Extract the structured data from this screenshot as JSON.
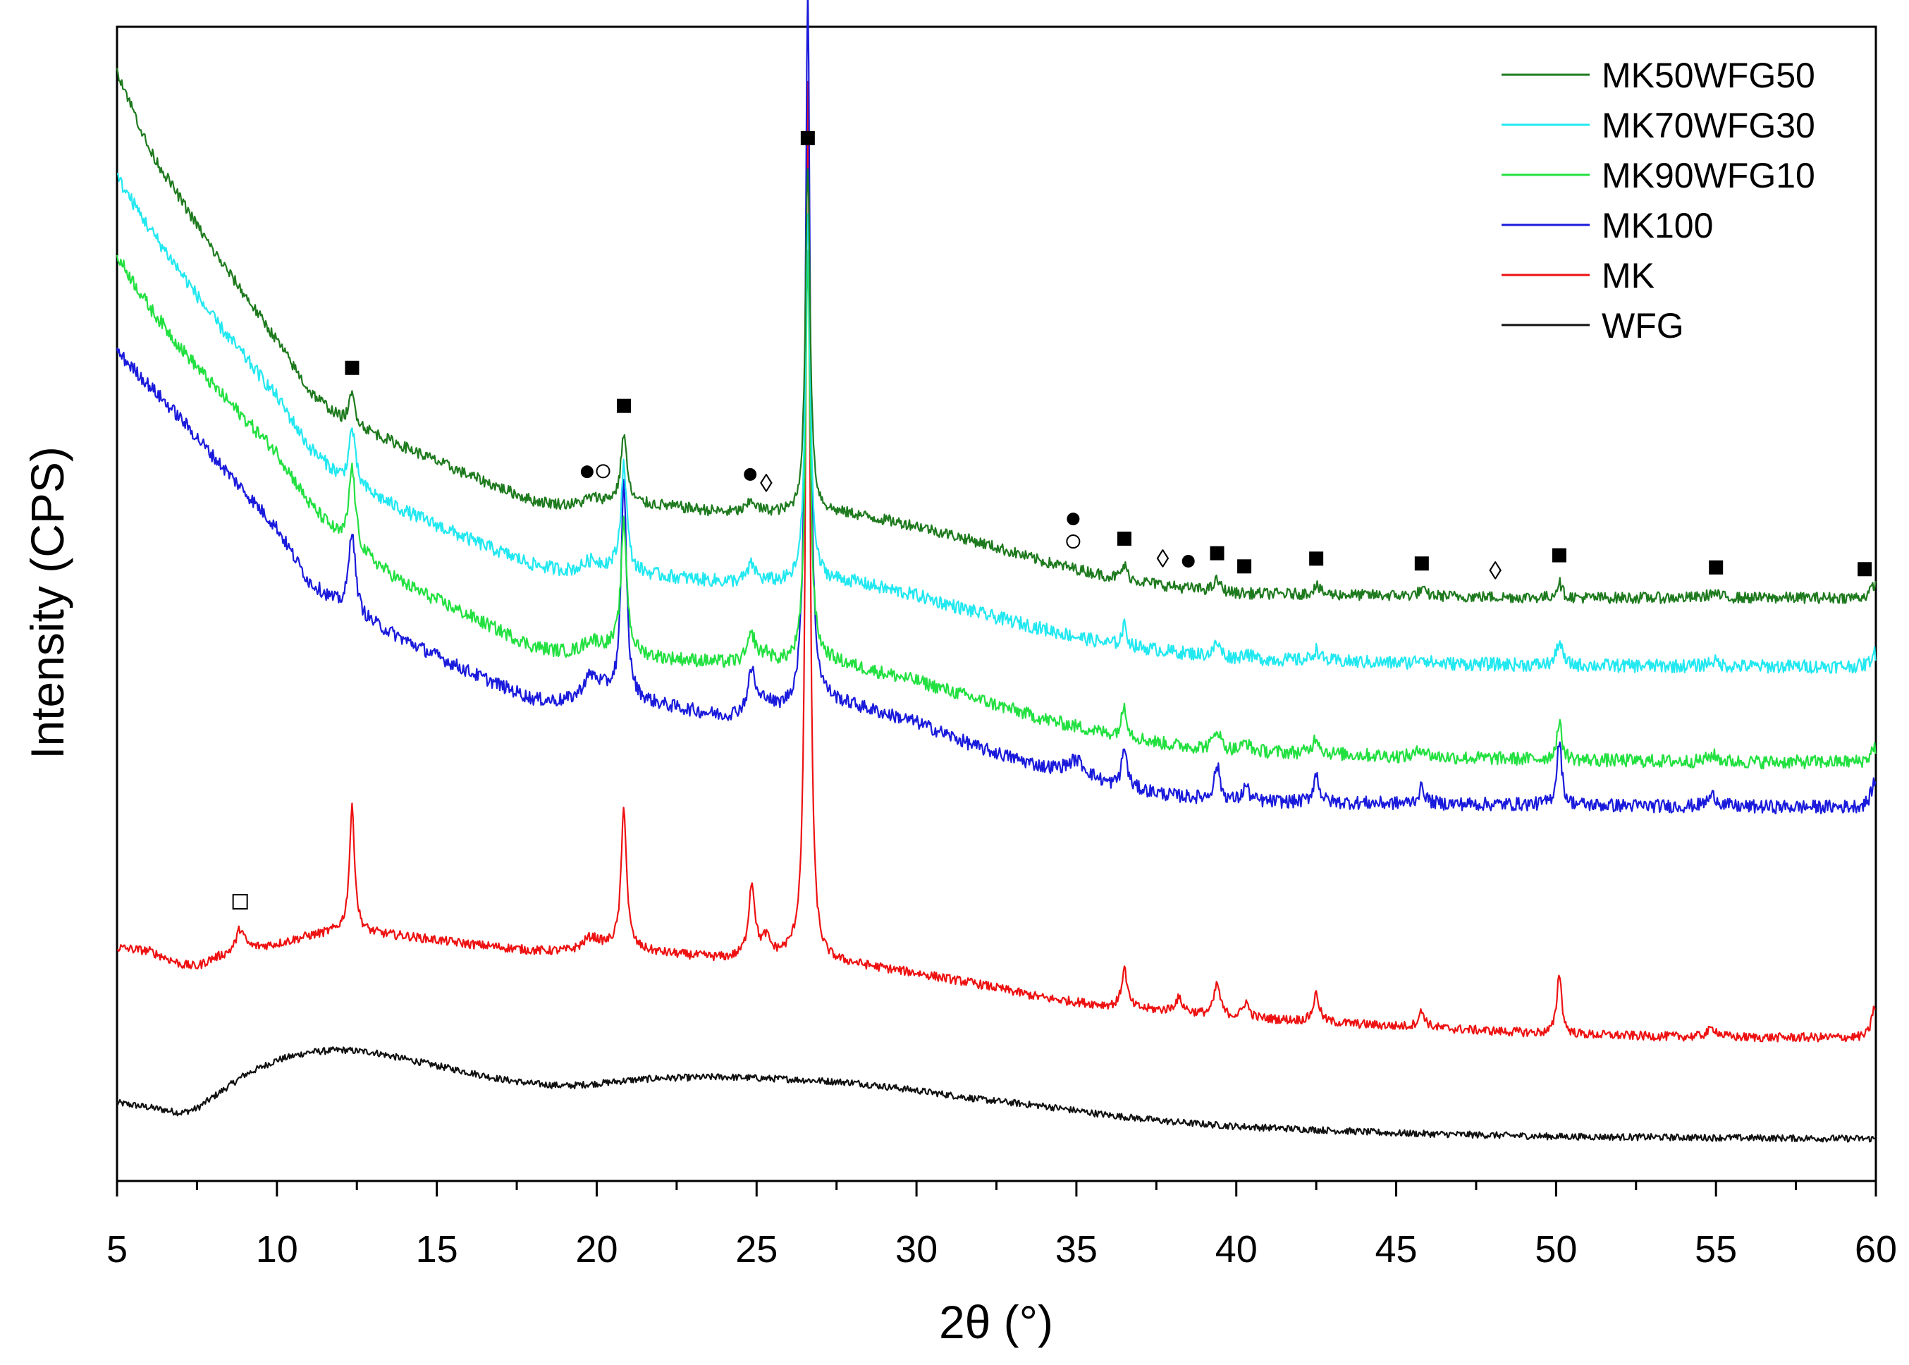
{
  "chart_data": {
    "type": "line",
    "title": "",
    "xlabel": "2θ (°)",
    "ylabel": "Intensity (CPS)",
    "xlim": [
      5,
      60
    ],
    "xticks": [
      5,
      10,
      15,
      20,
      25,
      30,
      35,
      40,
      45,
      50,
      55,
      60
    ],
    "ylim": [
      0,
      1000
    ],
    "yticks_shown": false,
    "legend_position": "top-right",
    "series": [
      {
        "name": "MK50WFG50",
        "color": "#1e7a1e",
        "noise": 5,
        "baseline": [
          [
            5,
            975
          ],
          [
            6,
            905
          ],
          [
            7,
            860
          ],
          [
            8,
            815
          ],
          [
            9,
            775
          ],
          [
            10,
            735
          ],
          [
            11,
            690
          ],
          [
            12,
            665
          ],
          [
            14,
            640
          ],
          [
            16,
            615
          ],
          [
            18,
            592
          ],
          [
            19.5,
            585
          ],
          [
            20.5,
            590
          ],
          [
            22,
            588
          ],
          [
            24,
            582
          ],
          [
            25.5,
            582
          ],
          [
            26.3,
            580
          ],
          [
            27,
            582
          ],
          [
            28,
            580
          ],
          [
            30,
            570
          ],
          [
            32,
            555
          ],
          [
            34,
            538
          ],
          [
            36,
            525
          ],
          [
            38,
            516
          ],
          [
            40,
            510
          ],
          [
            45,
            508
          ],
          [
            50,
            506
          ],
          [
            55,
            506
          ],
          [
            60,
            506
          ]
        ],
        "peaks": [
          [
            12.35,
            26,
            0.12
          ],
          [
            19.8,
            8,
            0.45
          ],
          [
            20.85,
            62,
            0.11
          ],
          [
            24.85,
            10,
            0.15
          ],
          [
            26.6,
            310,
            0.09
          ],
          [
            36.5,
            12,
            0.1
          ],
          [
            39.4,
            10,
            0.12
          ],
          [
            42.5,
            8,
            0.12
          ],
          [
            45.8,
            5,
            0.15
          ],
          [
            50.1,
            14,
            0.1
          ],
          [
            54.9,
            4,
            0.2
          ],
          [
            59.95,
            12,
            0.12
          ]
        ]
      },
      {
        "name": "MK70WFG30",
        "color": "#22e8f0",
        "noise": 6,
        "baseline": [
          [
            5,
            880
          ],
          [
            6,
            835
          ],
          [
            7,
            795
          ],
          [
            8,
            755
          ],
          [
            9,
            720
          ],
          [
            10,
            685
          ],
          [
            11,
            640
          ],
          [
            12,
            612
          ],
          [
            14,
            583
          ],
          [
            16,
            558
          ],
          [
            18,
            535
          ],
          [
            19.5,
            525
          ],
          [
            20.5,
            530
          ],
          [
            22,
            525
          ],
          [
            24,
            520
          ],
          [
            25.5,
            520
          ],
          [
            26.3,
            518
          ],
          [
            27,
            522
          ],
          [
            28,
            520
          ],
          [
            30,
            508
          ],
          [
            32,
            492
          ],
          [
            34,
            478
          ],
          [
            36,
            465
          ],
          [
            38,
            458
          ],
          [
            40,
            452
          ],
          [
            45,
            448
          ],
          [
            50,
            446
          ],
          [
            55,
            445
          ],
          [
            60,
            445
          ]
        ],
        "peaks": [
          [
            12.35,
            50,
            0.12
          ],
          [
            19.8,
            12,
            0.45
          ],
          [
            20.85,
            95,
            0.11
          ],
          [
            24.85,
            15,
            0.15
          ],
          [
            26.6,
            330,
            0.09
          ],
          [
            36.5,
            18,
            0.1
          ],
          [
            39.4,
            12,
            0.12
          ],
          [
            40.3,
            6,
            0.12
          ],
          [
            42.5,
            10,
            0.12
          ],
          [
            45.8,
            6,
            0.15
          ],
          [
            50.1,
            22,
            0.1
          ],
          [
            54.9,
            5,
            0.2
          ],
          [
            59.95,
            12,
            0.12
          ]
        ]
      },
      {
        "name": "MK90WFG10",
        "color": "#22e040",
        "noise": 6,
        "baseline": [
          [
            5,
            810
          ],
          [
            6,
            765
          ],
          [
            7,
            728
          ],
          [
            8,
            695
          ],
          [
            9,
            665
          ],
          [
            10,
            635
          ],
          [
            11,
            590
          ],
          [
            12,
            558
          ],
          [
            14,
            518
          ],
          [
            16,
            490
          ],
          [
            18,
            462
          ],
          [
            19.5,
            452
          ],
          [
            20.5,
            458
          ],
          [
            22,
            452
          ],
          [
            24,
            448
          ],
          [
            25.5,
            448
          ],
          [
            26.3,
            448
          ],
          [
            27,
            452
          ],
          [
            28,
            445
          ],
          [
            30,
            432
          ],
          [
            32,
            415
          ],
          [
            34,
            398
          ],
          [
            36,
            385
          ],
          [
            38,
            375
          ],
          [
            40,
            370
          ],
          [
            45,
            365
          ],
          [
            50,
            362
          ],
          [
            55,
            360
          ],
          [
            60,
            360
          ]
        ],
        "peaks": [
          [
            12.35,
            72,
            0.12
          ],
          [
            19.8,
            14,
            0.45
          ],
          [
            20.85,
            115,
            0.11
          ],
          [
            24.85,
            24,
            0.15
          ],
          [
            25.3,
            8,
            0.15
          ],
          [
            26.6,
            360,
            0.09
          ],
          [
            36.5,
            28,
            0.1
          ],
          [
            39.4,
            18,
            0.12
          ],
          [
            40.3,
            8,
            0.12
          ],
          [
            42.5,
            15,
            0.12
          ],
          [
            45.8,
            8,
            0.15
          ],
          [
            50.1,
            32,
            0.1
          ],
          [
            54.9,
            6,
            0.2
          ],
          [
            59.95,
            14,
            0.12
          ]
        ]
      },
      {
        "name": "MK100",
        "color": "#1a1adc",
        "noise": 6,
        "baseline": [
          [
            5,
            725
          ],
          [
            6,
            695
          ],
          [
            7,
            665
          ],
          [
            8,
            632
          ],
          [
            9,
            600
          ],
          [
            10,
            568
          ],
          [
            11,
            520
          ],
          [
            12,
            498
          ],
          [
            14,
            468
          ],
          [
            16,
            440
          ],
          [
            18,
            415
          ],
          [
            19.5,
            408
          ],
          [
            20.5,
            418
          ],
          [
            22,
            410
          ],
          [
            24,
            400
          ],
          [
            25.5,
            405
          ],
          [
            26.3,
            408
          ],
          [
            27,
            415
          ],
          [
            28,
            410
          ],
          [
            30,
            395
          ],
          [
            32,
            372
          ],
          [
            34,
            355
          ],
          [
            35,
            352
          ],
          [
            36,
            340
          ],
          [
            38,
            330
          ],
          [
            40,
            325
          ],
          [
            45,
            323
          ],
          [
            50,
            322
          ],
          [
            55,
            320
          ],
          [
            60,
            320
          ]
        ],
        "peaks": [
          [
            12.35,
            75,
            0.12
          ],
          [
            19.8,
            25,
            0.4
          ],
          [
            20.85,
            190,
            0.1
          ],
          [
            24.85,
            38,
            0.14
          ],
          [
            25.3,
            10,
            0.15
          ],
          [
            26.6,
            640,
            0.085
          ],
          [
            35.0,
            10,
            0.3
          ],
          [
            36.5,
            35,
            0.1
          ],
          [
            39.4,
            30,
            0.11
          ],
          [
            40.3,
            14,
            0.11
          ],
          [
            42.5,
            25,
            0.11
          ],
          [
            45.8,
            14,
            0.13
          ],
          [
            50.1,
            58,
            0.09
          ],
          [
            54.9,
            10,
            0.2
          ],
          [
            59.95,
            22,
            0.12
          ]
        ]
      },
      {
        "name": "MK",
        "color": "#ee1111",
        "noise": 4,
        "baseline": [
          [
            5,
            195
          ],
          [
            6,
            192
          ],
          [
            7,
            180
          ],
          [
            7.5,
            178
          ],
          [
            8,
            185
          ],
          [
            9,
            193
          ],
          [
            10,
            198
          ],
          [
            11,
            205
          ],
          [
            12,
            210
          ],
          [
            14,
            205
          ],
          [
            16,
            198
          ],
          [
            18,
            192
          ],
          [
            19.5,
            190
          ],
          [
            20.5,
            195
          ],
          [
            22,
            190
          ],
          [
            24,
            185
          ],
          [
            25.5,
            186
          ],
          [
            26.3,
            188
          ],
          [
            27,
            182
          ],
          [
            28,
            180
          ],
          [
            30,
            172
          ],
          [
            32,
            162
          ],
          [
            34,
            150
          ],
          [
            36,
            143
          ],
          [
            38,
            138
          ],
          [
            40,
            133
          ],
          [
            45,
            125
          ],
          [
            50,
            118
          ],
          [
            55,
            115
          ],
          [
            60,
            115
          ]
        ],
        "peaks": [
          [
            8.85,
            20,
            0.15
          ],
          [
            12.35,
            110,
            0.1
          ],
          [
            19.8,
            12,
            0.35
          ],
          [
            20.85,
            125,
            0.1
          ],
          [
            24.85,
            65,
            0.12
          ],
          [
            25.3,
            15,
            0.15
          ],
          [
            26.6,
            780,
            0.08
          ],
          [
            36.5,
            35,
            0.1
          ],
          [
            38.2,
            12,
            0.15
          ],
          [
            39.4,
            28,
            0.11
          ],
          [
            40.3,
            14,
            0.11
          ],
          [
            42.5,
            25,
            0.11
          ],
          [
            45.8,
            14,
            0.13
          ],
          [
            50.1,
            55,
            0.09
          ],
          [
            54.9,
            8,
            0.2
          ],
          [
            59.95,
            28,
            0.1
          ]
        ]
      },
      {
        "name": "WFG",
        "color": "#111111",
        "noise": 3,
        "baseline": [
          [
            5,
            57
          ],
          [
            6,
            53
          ],
          [
            7,
            48
          ],
          [
            7.5,
            52
          ],
          [
            8,
            62
          ],
          [
            9,
            82
          ],
          [
            10,
            95
          ],
          [
            11,
            102
          ],
          [
            12,
            104
          ],
          [
            13,
            102
          ],
          [
            14,
            96
          ],
          [
            15,
            90
          ],
          [
            16,
            84
          ],
          [
            17,
            78
          ],
          [
            18,
            74
          ],
          [
            19,
            72
          ],
          [
            20,
            74
          ],
          [
            21,
            77
          ],
          [
            22,
            79
          ],
          [
            24,
            80
          ],
          [
            26,
            78
          ],
          [
            28,
            75
          ],
          [
            30,
            68
          ],
          [
            32,
            60
          ],
          [
            34,
            54
          ],
          [
            36,
            46
          ],
          [
            38,
            40
          ],
          [
            40,
            36
          ],
          [
            45,
            30
          ],
          [
            50,
            27
          ],
          [
            55,
            26
          ],
          [
            60,
            25
          ]
        ],
        "peaks": []
      }
    ],
    "phase_markers": [
      {
        "symbol": "■",
        "x": 12.35,
        "on": "MK50WFG50"
      },
      {
        "symbol": "■",
        "x": 20.85,
        "on": "MK50WFG50"
      },
      {
        "symbol": "■",
        "x": 26.6,
        "on": "MK50WFG50"
      },
      {
        "symbol": "■",
        "x": 36.5,
        "on": "MK50WFG50"
      },
      {
        "symbol": "■",
        "x": 39.4,
        "on": "MK50WFG50"
      },
      {
        "symbol": "■",
        "x": 40.25,
        "on": "MK50WFG50"
      },
      {
        "symbol": "■",
        "x": 42.5,
        "on": "MK50WFG50"
      },
      {
        "symbol": "■",
        "x": 45.8,
        "on": "MK50WFG50"
      },
      {
        "symbol": "■",
        "x": 50.1,
        "on": "MK50WFG50"
      },
      {
        "symbol": "■",
        "x": 55.0,
        "on": "MK50WFG50"
      },
      {
        "symbol": "■",
        "x": 59.65,
        "on": "MK50WFG50"
      },
      {
        "symbol": "●",
        "x": 19.7,
        "on": "MK50WFG50"
      },
      {
        "symbol": "○",
        "x": 20.2,
        "on": "MK50WFG50"
      },
      {
        "symbol": "●",
        "x": 24.8,
        "on": "MK50WFG50"
      },
      {
        "symbol": "◊",
        "x": 25.3,
        "on": "MK50WFG50"
      },
      {
        "symbol": "○",
        "x": 34.9,
        "on": "MK50WFG50"
      },
      {
        "symbol": "●",
        "x": 34.9,
        "on": "MK50WFG50"
      },
      {
        "symbol": "◊",
        "x": 37.7,
        "on": "MK50WFG50"
      },
      {
        "symbol": "●",
        "x": 38.5,
        "on": "MK50WFG50"
      },
      {
        "symbol": "◊",
        "x": 48.1,
        "on": "MK50WFG50"
      },
      {
        "symbol": "□",
        "x": 8.85,
        "on": "MK"
      }
    ]
  }
}
